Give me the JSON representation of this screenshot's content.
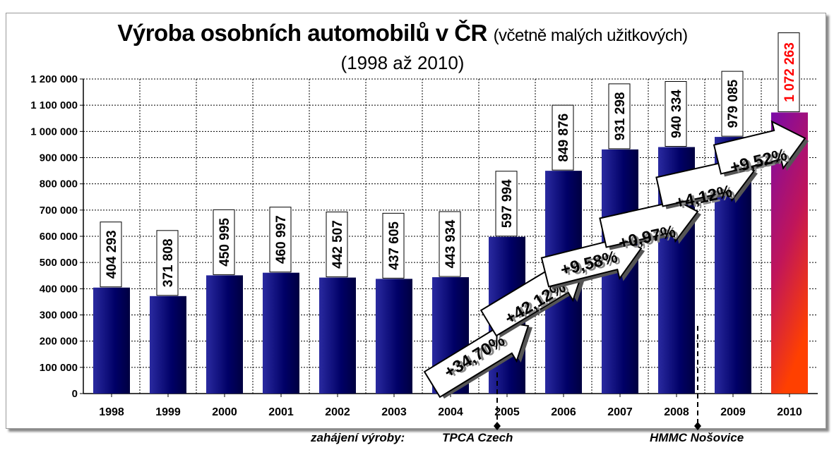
{
  "header": {
    "title": "Výroba osobních automobilů v ČR",
    "subtitle": "(včetně malých užitkových)",
    "period": "(1998 až 2010)"
  },
  "annotations": {
    "start_label": "zahájení výroby:",
    "tpca": "TPCA Czech",
    "hmmc": "HMMC Nošovice"
  },
  "chart_data": {
    "type": "bar",
    "categories": [
      "1998",
      "1999",
      "2000",
      "2001",
      "2002",
      "2003",
      "2004",
      "2005",
      "2006",
      "2007",
      "2008",
      "2009",
      "2010"
    ],
    "values": [
      404293,
      371808,
      450995,
      460997,
      442507,
      437605,
      443934,
      597994,
      849876,
      931298,
      940334,
      979085,
      1072263
    ],
    "value_labels": [
      "404 293",
      "371 808",
      "450 995",
      "460 997",
      "442 507",
      "437 605",
      "443 934",
      "597 994",
      "849 876",
      "931 298",
      "940 334",
      "979 085",
      "1 072 263"
    ],
    "ylim": [
      0,
      1200000
    ],
    "yticks": [
      "0",
      "100 000",
      "200 000",
      "300 000",
      "400 000",
      "500 000",
      "600 000",
      "700 000",
      "800 000",
      "900 000",
      "1 000 000",
      "1 100 000",
      "1 200 000"
    ],
    "growth_labels": [
      "+34,70%",
      "+42,12%",
      "+9,58%",
      "+0,97%",
      "+4,12%",
      "+9,52%"
    ],
    "grid": true,
    "colors": {
      "bar": "#000066",
      "bar_light": "#2a2aa0",
      "highlight_top": "#7a0aa8",
      "highlight_bottom": "#ff4000",
      "highlight_label": "#ff0000"
    }
  }
}
